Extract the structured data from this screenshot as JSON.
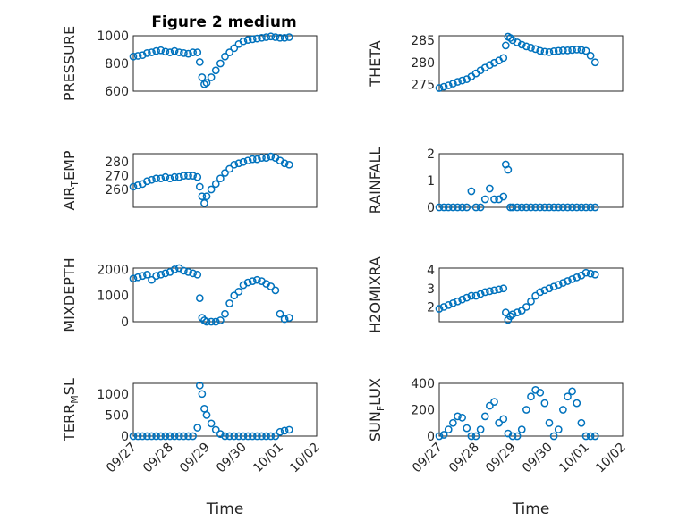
{
  "chart_data": [
    {
      "type": "scatter",
      "title": "Figure 2 medium",
      "ylabel": "PRESSURE",
      "xlabel": "",
      "ylim": [
        600,
        1000
      ],
      "yticks": [
        "600",
        "800",
        "1000"
      ],
      "yvals": [
        600,
        800,
        1000
      ],
      "xticks": [],
      "color": "#0072BD",
      "series": [
        {
          "x": [
            "09/27 00:00",
            "09/27 03:00",
            "09/27 06:00",
            "09/27 09:00",
            "09/27 12:00",
            "09/27 15:00",
            "09/27 18:00",
            "09/27 21:00",
            "09/28 00:00",
            "09/28 03:00",
            "09/28 06:00",
            "09/28 09:00",
            "09/28 12:00",
            "09/28 15:00",
            "09/28 18:00",
            "09/28 19:30",
            "09/28 21:00",
            "09/28 22:30",
            "09/29 00:00",
            "09/29 03:00",
            "09/29 06:00",
            "09/29 09:00",
            "09/29 12:00",
            "09/29 15:00",
            "09/29 18:00",
            "09/29 21:00",
            "09/30 00:00",
            "09/30 03:00",
            "09/30 06:00",
            "09/30 09:00",
            "09/30 12:00",
            "09/30 15:00",
            "09/30 18:00",
            "09/30 21:00",
            "10/01 00:00",
            "10/01 03:00",
            "10/01 06:00"
          ],
          "y": [
            850,
            855,
            860,
            875,
            880,
            890,
            895,
            885,
            880,
            890,
            880,
            875,
            870,
            880,
            880,
            810,
            700,
            650,
            660,
            700,
            750,
            800,
            850,
            880,
            910,
            940,
            960,
            970,
            975,
            980,
            985,
            990,
            995,
            990,
            985,
            985,
            990
          ]
        }
      ]
    },
    {
      "type": "scatter",
      "ylabel": "THETA",
      "ylim": [
        273.5,
        286
      ],
      "yticks": [
        "275",
        "280",
        "285"
      ],
      "yvals": [
        275,
        280,
        285
      ],
      "xticks": [],
      "series": [
        {
          "x": [
            "09/27 00:00",
            "09/27 03:00",
            "09/27 06:00",
            "09/27 09:00",
            "09/27 12:00",
            "09/27 15:00",
            "09/27 18:00",
            "09/27 21:00",
            "09/28 00:00",
            "09/28 03:00",
            "09/28 06:00",
            "09/28 09:00",
            "09/28 12:00",
            "09/28 15:00",
            "09/28 18:00",
            "09/28 19:30",
            "09/28 21:00",
            "09/28 22:30",
            "09/29 00:00",
            "09/29 03:00",
            "09/29 06:00",
            "09/29 09:00",
            "09/29 12:00",
            "09/29 15:00",
            "09/29 18:00",
            "09/29 21:00",
            "09/30 00:00",
            "09/30 03:00",
            "09/30 06:00",
            "09/30 09:00",
            "09/30 12:00",
            "09/30 15:00",
            "09/30 18:00",
            "09/30 21:00",
            "10/01 00:00",
            "10/01 03:00",
            "10/01 06:00"
          ],
          "y": [
            274.2,
            274.5,
            274.8,
            275.2,
            275.6,
            275.9,
            276.2,
            276.8,
            277.5,
            278.2,
            278.8,
            279.4,
            279.9,
            280.4,
            281.0,
            283.8,
            285.8,
            285.5,
            285.0,
            284.5,
            284.0,
            283.6,
            283.3,
            283.0,
            282.6,
            282.4,
            282.3,
            282.5,
            282.6,
            282.7,
            282.7,
            282.8,
            282.9,
            282.8,
            282.6,
            281.5,
            280.0
          ]
        }
      ]
    },
    {
      "type": "scatter",
      "ylabel": "AIR_TEMP",
      "ylim": [
        247,
        286
      ],
      "yticks": [
        "260",
        "270",
        "280"
      ],
      "yvals": [
        260,
        270,
        280
      ],
      "xticks": [],
      "series": [
        {
          "x": [
            "09/27 00:00",
            "09/27 03:00",
            "09/27 06:00",
            "09/27 09:00",
            "09/27 12:00",
            "09/27 15:00",
            "09/27 18:00",
            "09/27 21:00",
            "09/28 00:00",
            "09/28 03:00",
            "09/28 06:00",
            "09/28 09:00",
            "09/28 12:00",
            "09/28 15:00",
            "09/28 18:00",
            "09/28 19:30",
            "09/28 21:00",
            "09/28 22:30",
            "09/29 00:00",
            "09/29 03:00",
            "09/29 06:00",
            "09/29 09:00",
            "09/29 12:00",
            "09/29 15:00",
            "09/29 18:00",
            "09/29 21:00",
            "09/30 00:00",
            "09/30 03:00",
            "09/30 06:00",
            "09/30 09:00",
            "09/30 12:00",
            "09/30 15:00",
            "09/30 18:00",
            "09/30 21:00",
            "10/01 00:00",
            "10/01 03:00",
            "10/01 06:00"
          ],
          "y": [
            262,
            263,
            264,
            266,
            267,
            268,
            268,
            269,
            268,
            269,
            269,
            270,
            270,
            270,
            269,
            262,
            255,
            250,
            255,
            260,
            264,
            268,
            272,
            275,
            278,
            279,
            280,
            281,
            282,
            282,
            283,
            283,
            284,
            283,
            281,
            279,
            278
          ]
        }
      ]
    },
    {
      "type": "scatter",
      "ylabel": "RAINFALL",
      "ylim": [
        0,
        2
      ],
      "yticks": [
        "0",
        "1",
        "2"
      ],
      "yvals": [
        0,
        1,
        2
      ],
      "xticks": [],
      "series": [
        {
          "x": [
            "09/27 00:00",
            "09/27 03:00",
            "09/27 06:00",
            "09/27 09:00",
            "09/27 12:00",
            "09/27 15:00",
            "09/27 18:00",
            "09/27 21:00",
            "09/28 00:00",
            "09/28 03:00",
            "09/28 06:00",
            "09/28 09:00",
            "09/28 12:00",
            "09/28 15:00",
            "09/28 18:00",
            "09/28 19:30",
            "09/28 21:00",
            "09/28 22:30",
            "09/29 00:00",
            "09/29 03:00",
            "09/29 06:00",
            "09/29 09:00",
            "09/29 12:00",
            "09/29 15:00",
            "09/29 18:00",
            "09/29 21:00",
            "09/30 00:00",
            "09/30 03:00",
            "09/30 06:00",
            "09/30 09:00",
            "09/30 12:00",
            "09/30 15:00",
            "09/30 18:00",
            "09/30 21:00",
            "10/01 00:00",
            "10/01 03:00",
            "10/01 06:00"
          ],
          "y": [
            0,
            0,
            0,
            0,
            0,
            0,
            0,
            0.6,
            0,
            0,
            0.3,
            0.7,
            0.3,
            0.3,
            0.4,
            1.6,
            1.4,
            0,
            0,
            0,
            0,
            0,
            0,
            0,
            0,
            0,
            0,
            0,
            0,
            0,
            0,
            0,
            0,
            0,
            0,
            0,
            0
          ]
        }
      ]
    },
    {
      "type": "scatter",
      "ylabel": "MIXDEPTH",
      "ylim": [
        0,
        2050
      ],
      "yticks": [
        "0",
        "1000",
        "2000"
      ],
      "yvals": [
        0,
        1000,
        2000
      ],
      "xticks": [],
      "series": [
        {
          "x": [
            "09/27 00:00",
            "09/27 03:00",
            "09/27 06:00",
            "09/27 09:00",
            "09/27 12:00",
            "09/27 15:00",
            "09/27 18:00",
            "09/27 21:00",
            "09/28 00:00",
            "09/28 03:00",
            "09/28 06:00",
            "09/28 09:00",
            "09/28 12:00",
            "09/28 15:00",
            "09/28 18:00",
            "09/28 19:30",
            "09/28 21:00",
            "09/28 22:30",
            "09/29 00:00",
            "09/29 03:00",
            "09/29 06:00",
            "09/29 09:00",
            "09/29 12:00",
            "09/29 15:00",
            "09/29 18:00",
            "09/29 21:00",
            "09/30 00:00",
            "09/30 03:00",
            "09/30 06:00",
            "09/30 09:00",
            "09/30 12:00",
            "09/30 15:00",
            "09/30 18:00",
            "09/30 21:00",
            "10/01 00:00",
            "10/01 03:00",
            "10/01 06:00"
          ],
          "y": [
            1650,
            1700,
            1750,
            1800,
            1600,
            1750,
            1800,
            1850,
            1900,
            2000,
            2050,
            1950,
            1900,
            1850,
            1800,
            900,
            150,
            50,
            0,
            0,
            0,
            50,
            300,
            700,
            1000,
            1150,
            1400,
            1500,
            1550,
            1600,
            1550,
            1450,
            1350,
            1200,
            300,
            100,
            150
          ]
        }
      ]
    },
    {
      "type": "scatter",
      "ylabel": "H2OMIXRA",
      "ylim": [
        1.2,
        4.1
      ],
      "yticks": [
        "2",
        "3",
        "4"
      ],
      "yvals": [
        2,
        3,
        4
      ],
      "xticks": [],
      "series": [
        {
          "x": [
            "09/27 00:00",
            "09/27 03:00",
            "09/27 06:00",
            "09/27 09:00",
            "09/27 12:00",
            "09/27 15:00",
            "09/27 18:00",
            "09/27 21:00",
            "09/28 00:00",
            "09/28 03:00",
            "09/28 06:00",
            "09/28 09:00",
            "09/28 12:00",
            "09/28 15:00",
            "09/28 18:00",
            "09/28 19:30",
            "09/28 21:00",
            "09/28 22:30",
            "09/29 00:00",
            "09/29 03:00",
            "09/29 06:00",
            "09/29 09:00",
            "09/29 12:00",
            "09/29 15:00",
            "09/29 18:00",
            "09/29 21:00",
            "09/30 00:00",
            "09/30 03:00",
            "09/30 06:00",
            "09/30 09:00",
            "09/30 12:00",
            "09/30 15:00",
            "09/30 18:00",
            "09/30 21:00",
            "10/01 00:00",
            "10/01 03:00",
            "10/01 06:00"
          ],
          "y": [
            1.9,
            2.0,
            2.1,
            2.2,
            2.3,
            2.4,
            2.5,
            2.6,
            2.6,
            2.7,
            2.8,
            2.85,
            2.9,
            2.95,
            3.0,
            1.7,
            1.3,
            1.5,
            1.6,
            1.7,
            1.8,
            2.0,
            2.3,
            2.6,
            2.8,
            2.9,
            3.0,
            3.1,
            3.2,
            3.3,
            3.4,
            3.5,
            3.6,
            3.7,
            3.85,
            3.8,
            3.75
          ]
        }
      ]
    },
    {
      "type": "scatter",
      "ylabel": "TERR_MSL",
      "ylim": [
        0,
        1250
      ],
      "yticks": [
        "0",
        "500",
        "1000"
      ],
      "yvals": [
        0,
        500,
        1000
      ],
      "xticks": [
        "09/27",
        "09/28",
        "09/29",
        "09/30",
        "10/01",
        "10/02"
      ],
      "xlabel": "Time",
      "series": [
        {
          "x": [
            "09/27 00:00",
            "09/27 03:00",
            "09/27 06:00",
            "09/27 09:00",
            "09/27 12:00",
            "09/27 15:00",
            "09/27 18:00",
            "09/27 21:00",
            "09/28 00:00",
            "09/28 03:00",
            "09/28 06:00",
            "09/28 09:00",
            "09/28 12:00",
            "09/28 15:00",
            "09/28 18:00",
            "09/28 19:30",
            "09/28 21:00",
            "09/28 22:30",
            "09/29 00:00",
            "09/29 03:00",
            "09/29 06:00",
            "09/29 09:00",
            "09/29 12:00",
            "09/29 15:00",
            "09/29 18:00",
            "09/29 21:00",
            "09/30 00:00",
            "09/30 03:00",
            "09/30 06:00",
            "09/30 09:00",
            "09/30 12:00",
            "09/30 15:00",
            "09/30 18:00",
            "09/30 21:00",
            "10/01 00:00",
            "10/01 03:00",
            "10/01 06:00"
          ],
          "y": [
            0,
            0,
            0,
            0,
            0,
            0,
            0,
            0,
            0,
            0,
            0,
            0,
            0,
            0,
            200,
            1200,
            1000,
            650,
            500,
            300,
            150,
            50,
            0,
            0,
            0,
            0,
            0,
            0,
            0,
            0,
            0,
            0,
            0,
            0,
            100,
            130,
            150
          ]
        }
      ]
    },
    {
      "type": "scatter",
      "ylabel": "SUN_FLUX",
      "ylim": [
        0,
        400
      ],
      "yticks": [
        "0",
        "200",
        "400"
      ],
      "yvals": [
        0,
        200,
        400
      ],
      "xticks": [
        "09/27",
        "09/28",
        "09/29",
        "09/30",
        "10/01",
        "10/02"
      ],
      "xlabel": "Time",
      "series": [
        {
          "x": [
            "09/27 00:00",
            "09/27 03:00",
            "09/27 06:00",
            "09/27 09:00",
            "09/27 12:00",
            "09/27 15:00",
            "09/27 18:00",
            "09/27 21:00",
            "09/28 00:00",
            "09/28 03:00",
            "09/28 06:00",
            "09/28 09:00",
            "09/28 12:00",
            "09/28 15:00",
            "09/28 18:00",
            "09/28 21:00",
            "09/29 00:00",
            "09/29 03:00",
            "09/29 06:00",
            "09/29 09:00",
            "09/29 12:00",
            "09/29 15:00",
            "09/29 18:00",
            "09/29 21:00",
            "09/30 00:00",
            "09/30 03:00",
            "09/30 06:00",
            "09/30 09:00",
            "09/30 12:00",
            "09/30 15:00",
            "09/30 18:00",
            "09/30 21:00",
            "10/01 00:00",
            "10/01 03:00",
            "10/01 06:00"
          ],
          "y": [
            0,
            10,
            50,
            100,
            150,
            140,
            60,
            0,
            0,
            50,
            150,
            230,
            260,
            100,
            130,
            20,
            0,
            0,
            50,
            200,
            300,
            350,
            330,
            250,
            100,
            0,
            50,
            200,
            300,
            340,
            250,
            100,
            0,
            0,
            0
          ]
        }
      ]
    }
  ]
}
